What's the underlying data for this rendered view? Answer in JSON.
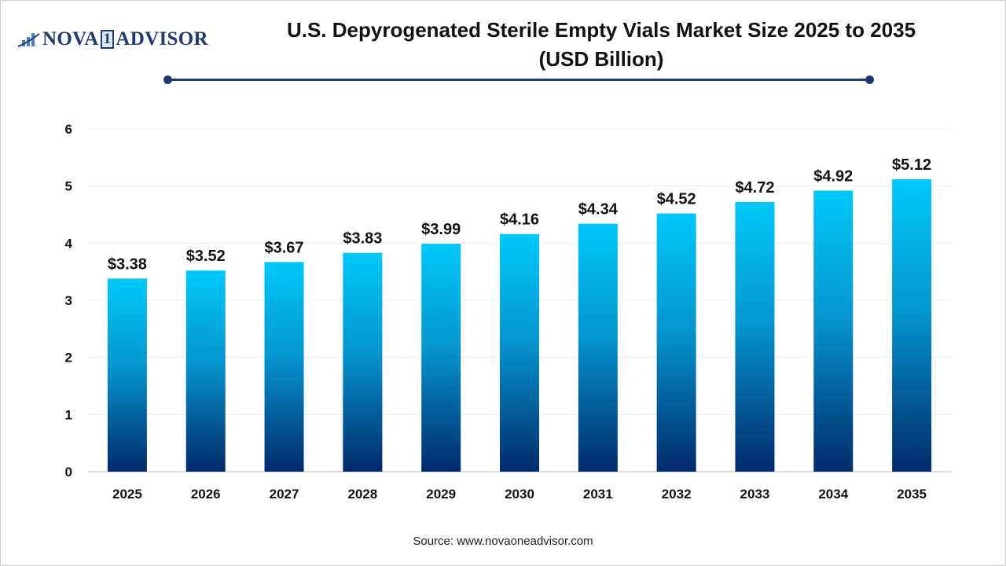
{
  "logo": {
    "text_left": "NOVA",
    "text_one": "1",
    "text_right": "ADVISOR"
  },
  "chart_data": {
    "type": "bar",
    "title": "U.S. Depyrogenated Sterile Empty Vials Market Size 2025 to 2035",
    "subtitle": "(USD Billion)",
    "categories": [
      "2025",
      "2026",
      "2027",
      "2028",
      "2029",
      "2030",
      "2031",
      "2032",
      "2033",
      "2034",
      "2035"
    ],
    "values": [
      3.38,
      3.52,
      3.67,
      3.83,
      3.99,
      4.16,
      4.34,
      4.52,
      4.72,
      4.92,
      5.12
    ],
    "data_labels": [
      "$3.38",
      "$3.52",
      "$3.67",
      "$3.83",
      "$3.99",
      "$4.16",
      "$4.34",
      "$4.52",
      "$4.72",
      "$4.92",
      "$5.12"
    ],
    "yticks": [
      "0",
      "1",
      "2",
      "3",
      "4",
      "5",
      "6"
    ],
    "ylim": [
      0,
      6
    ],
    "xlabel": "",
    "ylabel": "",
    "grid": true,
    "colors": {
      "bar_top": "#00c8fa",
      "bar_bottom": "#012a6b",
      "title_rule": "#1f3a6e"
    }
  },
  "source": "Source: www.novaoneadvisor.com"
}
